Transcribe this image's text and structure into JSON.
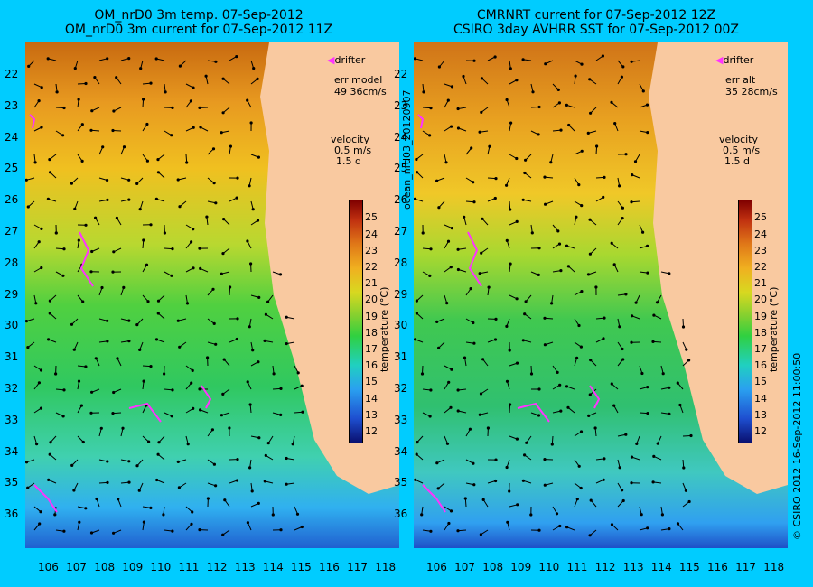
{
  "left_panel": {
    "title_line1": "OM_nrD0 3m temp. 07-Sep-2012",
    "title_line2": "OM_nrD0 3m current for 07-Sep-2012 11Z",
    "drifter_label": "drifter",
    "err_label": "err model",
    "err_value": "49 36cm/s",
    "velocity_label": "velocity",
    "velocity_scale": "0.5 m/s",
    "velocity_days": "1.5 d",
    "colorbar_label": "temperature (°C)"
  },
  "right_panel": {
    "title_line1": "CMRNRT current for 07-Sep-2012 12Z",
    "title_line2": "CSIRO 3day AVHRR SST for 07-Sep-2012 00Z",
    "drifter_label": "drifter",
    "err_label": "err alt",
    "err_value": "35 28cm/s",
    "velocity_label": "velocity",
    "velocity_scale": "0.5 m/s",
    "velocity_days": "1.5 d",
    "colorbar_label": "temperature (°C)"
  },
  "side_text": {
    "run_id": "ocean_nrd03_20120907",
    "credit": "© CSIRO 2012   16-Sep-2012 11:00:50"
  },
  "latitudes": [
    "22",
    "23",
    "24",
    "25",
    "26",
    "27",
    "28",
    "29",
    "30",
    "31",
    "32",
    "33",
    "34",
    "35",
    "36"
  ],
  "longitudes": [
    "106",
    "107",
    "108",
    "109",
    "110",
    "111",
    "112",
    "113",
    "114",
    "115",
    "116",
    "117",
    "118"
  ],
  "colorbar_ticks": [
    "12",
    "13",
    "14",
    "15",
    "16",
    "17",
    "18",
    "19",
    "20",
    "21",
    "22",
    "23",
    "24",
    "25"
  ],
  "colors": {
    "background": "#00ccff",
    "land": "#f9c9a0",
    "warm": "#e07818",
    "mid": "#40d040",
    "cool": "#30b0e0",
    "drifter": "#ff33ff"
  }
}
